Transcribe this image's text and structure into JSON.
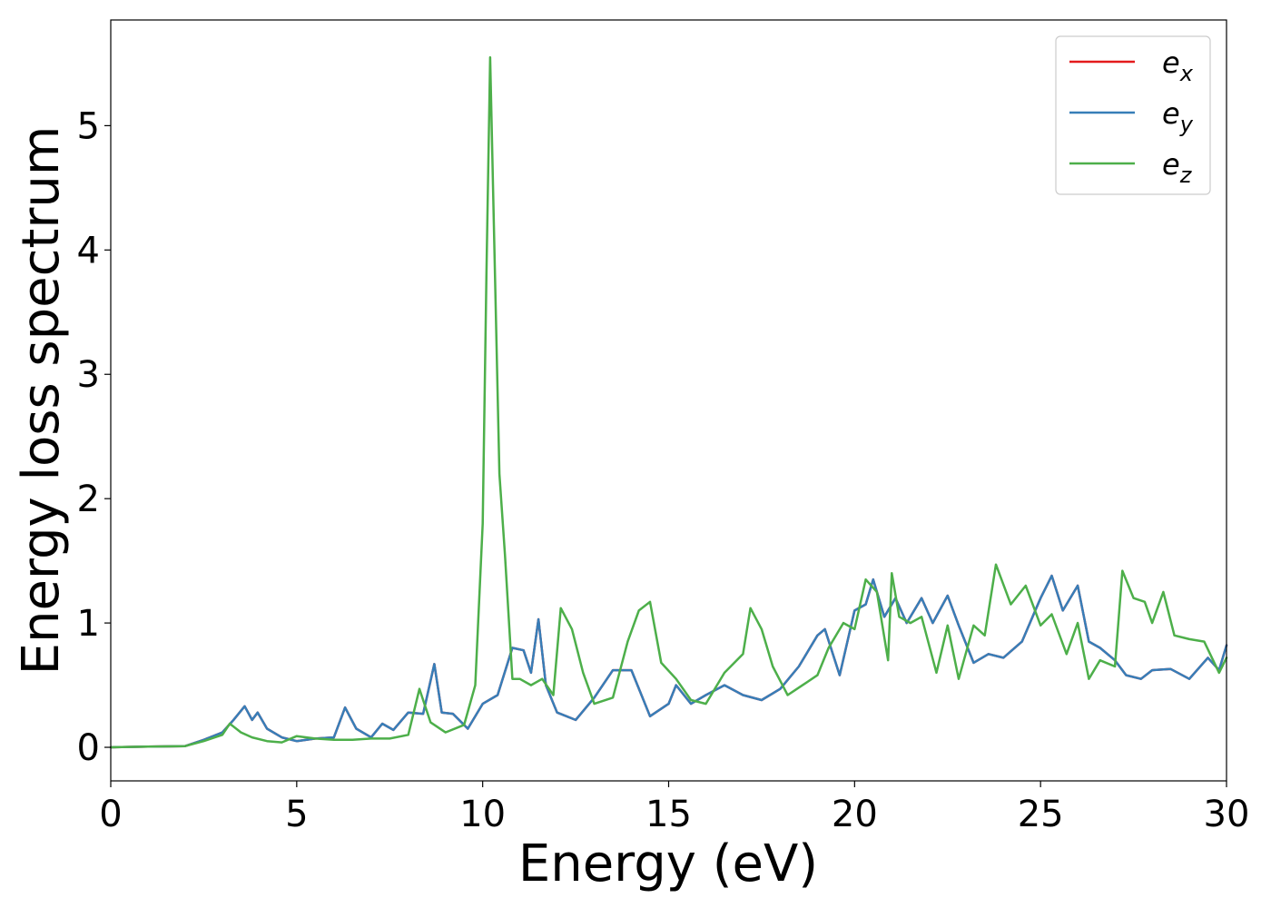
{
  "chart_data": {
    "type": "line",
    "title": "",
    "xlabel": "Energy (eV)",
    "ylabel": "Energy loss spectrum",
    "xlim": [
      0,
      30
    ],
    "ylim": [
      -0.27,
      5.85
    ],
    "xticks": [
      0,
      5,
      10,
      15,
      20,
      25,
      30
    ],
    "xtick_labels": [
      "0",
      "5",
      "10",
      "15",
      "20",
      "25",
      "30"
    ],
    "yticks": [
      0,
      1,
      2,
      3,
      4,
      5
    ],
    "ytick_labels": [
      "0",
      "1",
      "2",
      "3",
      "4",
      "5"
    ],
    "grid": false,
    "legend_position": "top-right",
    "series": [
      {
        "name": "e_x",
        "label_base": "e",
        "label_sub": "x",
        "color": "#e41a1c",
        "x": [
          0,
          1,
          2,
          2.5,
          3,
          3.3,
          3.6,
          3.8,
          3.95,
          4.2,
          4.6,
          5,
          5.5,
          6,
          6.3,
          6.6,
          7,
          7.3,
          7.6,
          8,
          8.4,
          8.7,
          8.9,
          9.2,
          9.6,
          10,
          10.4,
          10.8,
          11.1,
          11.3,
          11.5,
          11.7,
          12,
          12.5,
          13,
          13.5,
          14,
          14.5,
          15,
          15.2,
          15.6,
          16,
          16.5,
          17,
          17.5,
          18,
          18.5,
          19,
          19.2,
          19.6,
          20,
          20.3,
          20.5,
          20.8,
          21.1,
          21.4,
          21.8,
          22.1,
          22.5,
          22.8,
          23.2,
          23.6,
          24,
          24.5,
          25,
          25.3,
          25.6,
          26,
          26.3,
          26.6,
          27,
          27.3,
          27.7,
          28,
          28.5,
          29,
          29.5,
          29.8,
          30
        ],
        "y": [
          0,
          0.005,
          0.01,
          0.06,
          0.12,
          0.22,
          0.33,
          0.22,
          0.28,
          0.15,
          0.08,
          0.05,
          0.07,
          0.08,
          0.32,
          0.15,
          0.08,
          0.19,
          0.14,
          0.28,
          0.27,
          0.67,
          0.28,
          0.27,
          0.15,
          0.35,
          0.42,
          0.8,
          0.78,
          0.6,
          1.03,
          0.5,
          0.28,
          0.22,
          0.4,
          0.62,
          0.62,
          0.25,
          0.35,
          0.5,
          0.35,
          0.42,
          0.5,
          0.42,
          0.38,
          0.47,
          0.65,
          0.9,
          0.95,
          0.58,
          1.1,
          1.15,
          1.35,
          1.05,
          1.2,
          1.0,
          1.2,
          1.0,
          1.22,
          0.98,
          0.68,
          0.75,
          0.72,
          0.85,
          1.2,
          1.38,
          1.1,
          1.3,
          0.85,
          0.8,
          0.7,
          0.58,
          0.55,
          0.62,
          0.63,
          0.55,
          0.72,
          0.62,
          0.82
        ]
      },
      {
        "name": "e_y",
        "label_base": "e",
        "label_sub": "y",
        "color": "#377eb8",
        "x": [
          0,
          1,
          2,
          2.5,
          3,
          3.3,
          3.6,
          3.8,
          3.95,
          4.2,
          4.6,
          5,
          5.5,
          6,
          6.3,
          6.6,
          7,
          7.3,
          7.6,
          8,
          8.4,
          8.7,
          8.9,
          9.2,
          9.6,
          10,
          10.4,
          10.8,
          11.1,
          11.3,
          11.5,
          11.7,
          12,
          12.5,
          13,
          13.5,
          14,
          14.5,
          15,
          15.2,
          15.6,
          16,
          16.5,
          17,
          17.5,
          18,
          18.5,
          19,
          19.2,
          19.6,
          20,
          20.3,
          20.5,
          20.8,
          21.1,
          21.4,
          21.8,
          22.1,
          22.5,
          22.8,
          23.2,
          23.6,
          24,
          24.5,
          25,
          25.3,
          25.6,
          26,
          26.3,
          26.6,
          27,
          27.3,
          27.7,
          28,
          28.5,
          29,
          29.5,
          29.8,
          30
        ],
        "y": [
          0,
          0.005,
          0.01,
          0.06,
          0.12,
          0.22,
          0.33,
          0.22,
          0.28,
          0.15,
          0.08,
          0.05,
          0.07,
          0.08,
          0.32,
          0.15,
          0.08,
          0.19,
          0.14,
          0.28,
          0.27,
          0.67,
          0.28,
          0.27,
          0.15,
          0.35,
          0.42,
          0.8,
          0.78,
          0.6,
          1.03,
          0.5,
          0.28,
          0.22,
          0.4,
          0.62,
          0.62,
          0.25,
          0.35,
          0.5,
          0.35,
          0.42,
          0.5,
          0.42,
          0.38,
          0.47,
          0.65,
          0.9,
          0.95,
          0.58,
          1.1,
          1.15,
          1.35,
          1.05,
          1.2,
          1.0,
          1.2,
          1.0,
          1.22,
          0.98,
          0.68,
          0.75,
          0.72,
          0.85,
          1.2,
          1.38,
          1.1,
          1.3,
          0.85,
          0.8,
          0.7,
          0.58,
          0.55,
          0.62,
          0.63,
          0.55,
          0.72,
          0.62,
          0.82
        ]
      },
      {
        "name": "e_z",
        "label_base": "e",
        "label_sub": "z",
        "color": "#4daf4a",
        "x": [
          0,
          1,
          2,
          2.5,
          3,
          3.2,
          3.5,
          3.8,
          4.2,
          4.6,
          5,
          5.5,
          6,
          6.5,
          7,
          7.5,
          8,
          8.3,
          8.6,
          9,
          9.5,
          9.8,
          10,
          10.1,
          10.2,
          10.3,
          10.45,
          10.6,
          10.8,
          11,
          11.3,
          11.6,
          11.9,
          12.1,
          12.4,
          12.7,
          13,
          13.5,
          13.9,
          14.2,
          14.5,
          14.8,
          15.2,
          15.6,
          16,
          16.5,
          17,
          17.2,
          17.5,
          17.8,
          18.2,
          18.6,
          19,
          19.3,
          19.7,
          20,
          20.3,
          20.6,
          20.9,
          21,
          21.2,
          21.5,
          21.8,
          22.2,
          22.5,
          22.8,
          23.2,
          23.5,
          23.8,
          24.2,
          24.6,
          25,
          25.3,
          25.7,
          26,
          26.3,
          26.6,
          27,
          27.2,
          27.5,
          27.8,
          28,
          28.3,
          28.6,
          29,
          29.4,
          29.8,
          30
        ],
        "y": [
          0,
          0.005,
          0.01,
          0.05,
          0.1,
          0.19,
          0.12,
          0.08,
          0.05,
          0.04,
          0.09,
          0.07,
          0.06,
          0.06,
          0.07,
          0.07,
          0.1,
          0.47,
          0.2,
          0.12,
          0.18,
          0.5,
          1.8,
          3.8,
          5.55,
          4.2,
          2.2,
          1.55,
          0.55,
          0.55,
          0.5,
          0.55,
          0.42,
          1.12,
          0.95,
          0.6,
          0.35,
          0.4,
          0.85,
          1.1,
          1.17,
          0.68,
          0.55,
          0.38,
          0.35,
          0.6,
          0.75,
          1.12,
          0.95,
          0.65,
          0.42,
          0.5,
          0.58,
          0.8,
          1.0,
          0.95,
          1.35,
          1.25,
          0.7,
          1.4,
          1.05,
          1.0,
          1.05,
          0.6,
          0.98,
          0.55,
          0.98,
          0.9,
          1.47,
          1.15,
          1.3,
          0.98,
          1.07,
          0.75,
          1.0,
          0.55,
          0.7,
          0.65,
          1.42,
          1.2,
          1.17,
          1.0,
          1.25,
          0.9,
          0.87,
          0.85,
          0.6,
          0.72
        ]
      }
    ]
  }
}
